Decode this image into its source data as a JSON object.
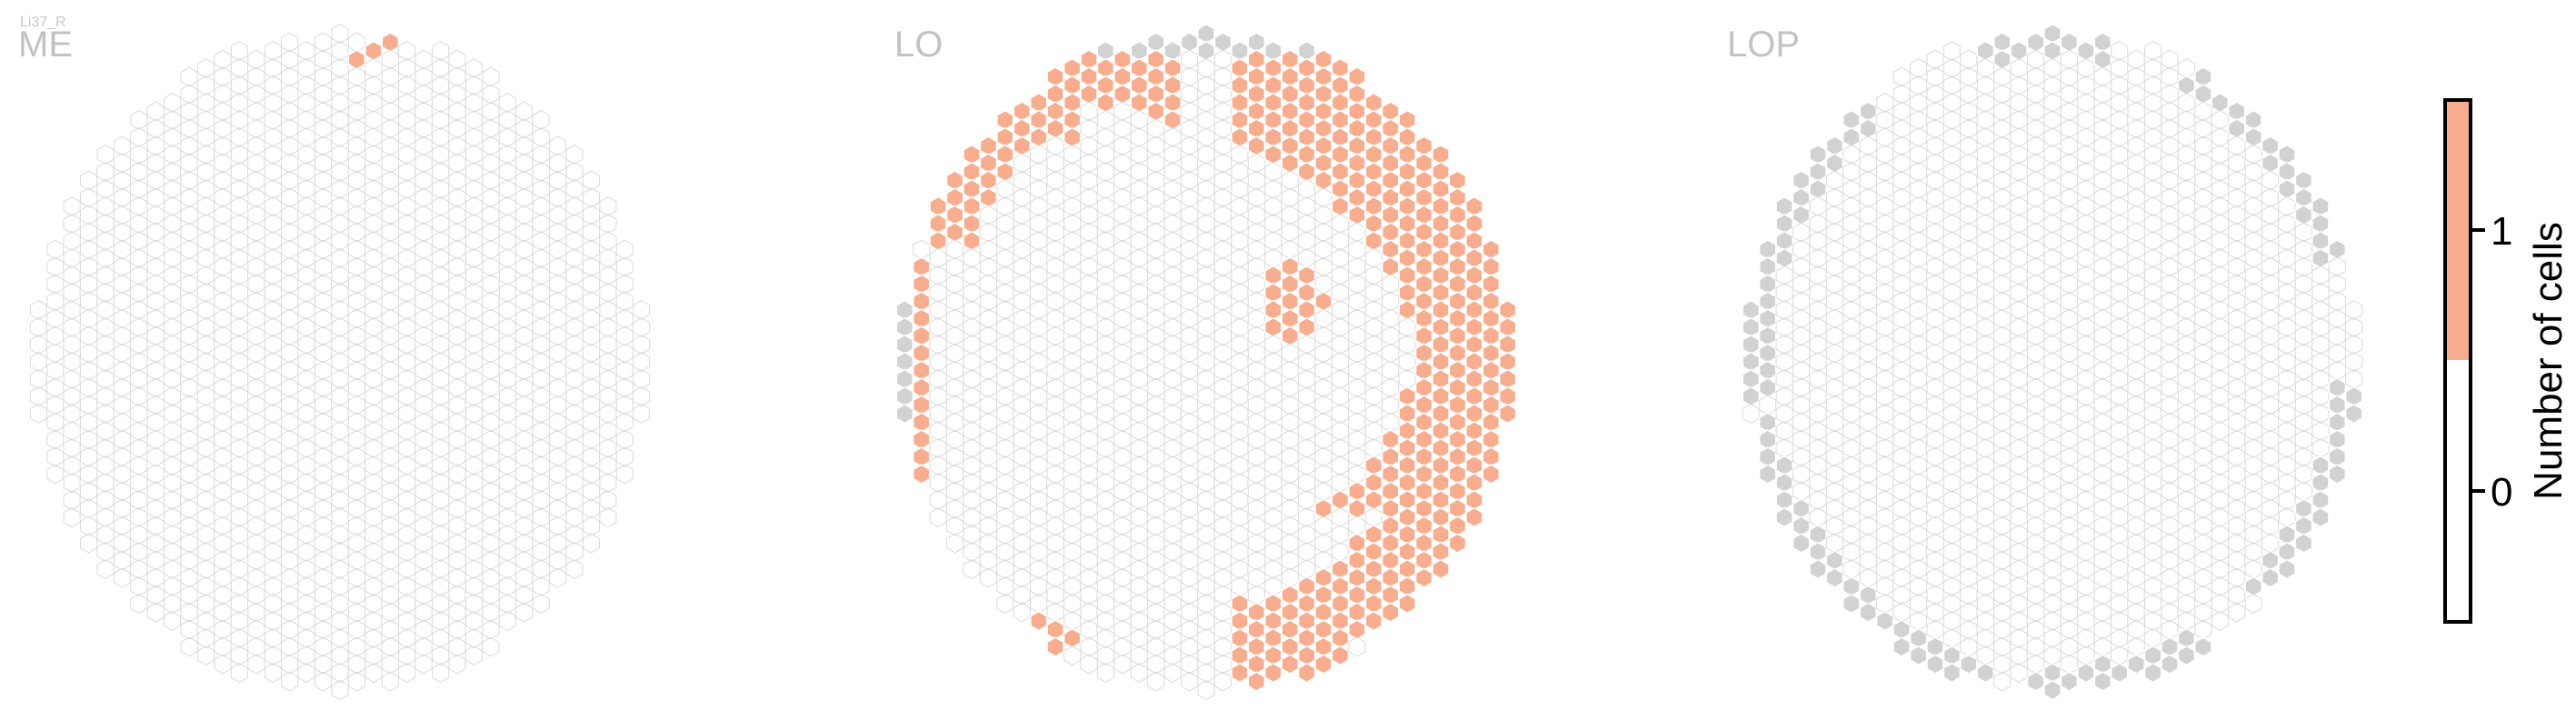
{
  "chart_data": {
    "type": "hexagonal-eye-map",
    "instance_label": "Li37_R",
    "panels": [
      {
        "title": "ME"
      },
      {
        "title": "LO"
      },
      {
        "title": "LOP"
      }
    ],
    "colorbar": {
      "label": "Number of cells",
      "ticks": [
        {
          "value": 0,
          "label": "0"
        },
        {
          "value": 1,
          "label": "1"
        }
      ],
      "range": [
        -0.5,
        1.5
      ],
      "colors": {
        "0": "#ffffff",
        "1": "#f7ad8e"
      }
    },
    "colors": {
      "filled": "#f7ad8e",
      "grey": "#d2d2d2",
      "empty_stroke": "#dadada",
      "filled_stroke": "#ffffff",
      "title": "#c2c2c2"
    }
  }
}
